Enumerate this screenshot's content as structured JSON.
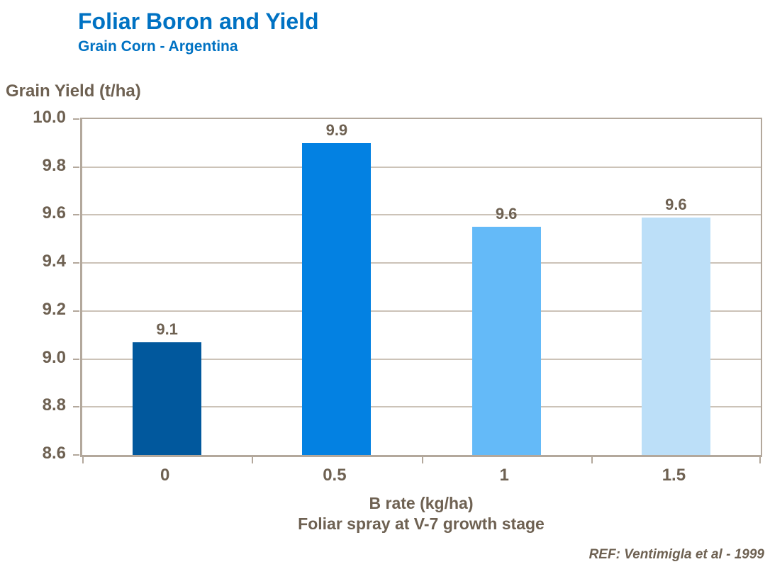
{
  "header": {
    "title": "Foliar Boron and Yield",
    "subtitle": "Grain Corn - Argentina"
  },
  "footer": {
    "ref": "REF: Ventimigla et al - 1999"
  },
  "chart_data": {
    "type": "bar",
    "title": "Foliar Boron and Yield",
    "subtitle": "Grain Corn - Argentina",
    "categories": [
      "0",
      "0.5",
      "1",
      "1.5"
    ],
    "values": [
      9.07,
      9.9,
      9.55,
      9.59
    ],
    "data_labels": [
      "9.1",
      "9.9",
      "9.6",
      "9.6"
    ],
    "ylabel": "Grain Yield (t/ha)",
    "xlabel": "B rate (kg/ha)",
    "xlabel2": "Foliar spray at V-7 growth stage",
    "ylim": [
      8.6,
      10.0
    ],
    "ytick_step": 0.2,
    "yticks": [
      "10.0",
      "9.8",
      "9.6",
      "9.4",
      "9.2",
      "9.0",
      "8.8",
      "8.6"
    ],
    "grid": true,
    "legend": false,
    "bar_colors": [
      "#01589D",
      "#0381E2",
      "#64BAF8",
      "#BCDFF8"
    ],
    "colors": {
      "title": "#0072C3",
      "text": "#6E6152",
      "axis": "#B3A89C",
      "grid": "#CCC3B8"
    }
  }
}
